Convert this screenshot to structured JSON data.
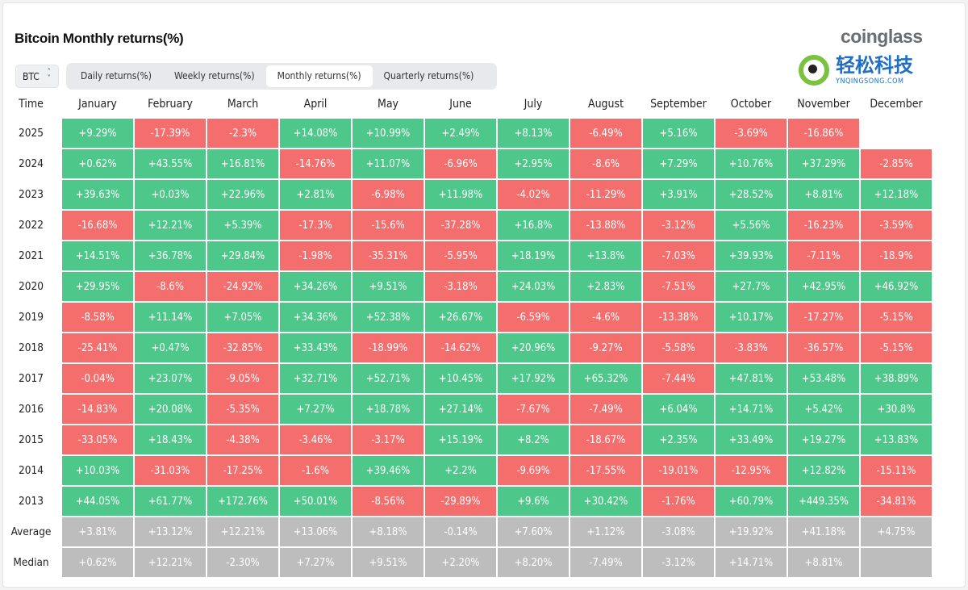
{
  "header": {
    "title": "Bitcoin Monthly returns(%)",
    "logo": "coinglass"
  },
  "controls": {
    "asset_select": "BTC",
    "tabs": [
      {
        "label": "Daily returns(%)",
        "active": false
      },
      {
        "label": "Weekly returns(%)",
        "active": false
      },
      {
        "label": "Monthly returns(%)",
        "active": true
      },
      {
        "label": "Quarterly returns(%)",
        "active": false
      }
    ]
  },
  "colors": {
    "positive": "#4dc78a",
    "negative": "#f46e6e",
    "stat": "#bdbdbd"
  },
  "table": {
    "columns": [
      "Time",
      "January",
      "February",
      "March",
      "April",
      "May",
      "June",
      "July",
      "August",
      "September",
      "October",
      "November",
      "December"
    ],
    "rows": [
      {
        "label": "2025",
        "values": [
          "+9.29%",
          "-17.39%",
          "-2.3%",
          "+14.08%",
          "+10.99%",
          "+2.49%",
          "+8.13%",
          "-6.49%",
          "+5.16%",
          "-3.69%",
          "-16.86%",
          ""
        ]
      },
      {
        "label": "2024",
        "values": [
          "+0.62%",
          "+43.55%",
          "+16.81%",
          "-14.76%",
          "+11.07%",
          "-6.96%",
          "+2.95%",
          "-8.6%",
          "+7.29%",
          "+10.76%",
          "+37.29%",
          "-2.85%"
        ]
      },
      {
        "label": "2023",
        "values": [
          "+39.63%",
          "+0.03%",
          "+22.96%",
          "+2.81%",
          "-6.98%",
          "+11.98%",
          "-4.02%",
          "-11.29%",
          "+3.91%",
          "+28.52%",
          "+8.81%",
          "+12.18%"
        ]
      },
      {
        "label": "2022",
        "values": [
          "-16.68%",
          "+12.21%",
          "+5.39%",
          "-17.3%",
          "-15.6%",
          "-37.28%",
          "+16.8%",
          "-13.88%",
          "-3.12%",
          "+5.56%",
          "-16.23%",
          "-3.59%"
        ]
      },
      {
        "label": "2021",
        "values": [
          "+14.51%",
          "+36.78%",
          "+29.84%",
          "-1.98%",
          "-35.31%",
          "-5.95%",
          "+18.19%",
          "+13.8%",
          "-7.03%",
          "+39.93%",
          "-7.11%",
          "-18.9%"
        ]
      },
      {
        "label": "2020",
        "values": [
          "+29.95%",
          "-8.6%",
          "-24.92%",
          "+34.26%",
          "+9.51%",
          "-3.18%",
          "+24.03%",
          "+2.83%",
          "-7.51%",
          "+27.7%",
          "+42.95%",
          "+46.92%"
        ]
      },
      {
        "label": "2019",
        "values": [
          "-8.58%",
          "+11.14%",
          "+7.05%",
          "+34.36%",
          "+52.38%",
          "+26.67%",
          "-6.59%",
          "-4.6%",
          "-13.38%",
          "+10.17%",
          "-17.27%",
          "-5.15%"
        ]
      },
      {
        "label": "2018",
        "values": [
          "-25.41%",
          "+0.47%",
          "-32.85%",
          "+33.43%",
          "-18.99%",
          "-14.62%",
          "+20.96%",
          "-9.27%",
          "-5.58%",
          "-3.83%",
          "-36.57%",
          "-5.15%"
        ]
      },
      {
        "label": "2017",
        "values": [
          "-0.04%",
          "+23.07%",
          "-9.05%",
          "+32.71%",
          "+52.71%",
          "+10.45%",
          "+17.92%",
          "+65.32%",
          "-7.44%",
          "+47.81%",
          "+53.48%",
          "+38.89%"
        ]
      },
      {
        "label": "2016",
        "values": [
          "-14.83%",
          "+20.08%",
          "-5.35%",
          "+7.27%",
          "+18.78%",
          "+27.14%",
          "-7.67%",
          "-7.49%",
          "+6.04%",
          "+14.71%",
          "+5.42%",
          "+30.8%"
        ]
      },
      {
        "label": "2015",
        "values": [
          "-33.05%",
          "+18.43%",
          "-4.38%",
          "-3.46%",
          "-3.17%",
          "+15.19%",
          "+8.2%",
          "-18.67%",
          "+2.35%",
          "+33.49%",
          "+19.27%",
          "+13.83%"
        ]
      },
      {
        "label": "2014",
        "values": [
          "+10.03%",
          "-31.03%",
          "-17.25%",
          "-1.6%",
          "+39.46%",
          "+2.2%",
          "-9.69%",
          "-17.55%",
          "-19.01%",
          "-12.95%",
          "+12.82%",
          "-15.11%"
        ]
      },
      {
        "label": "2013",
        "values": [
          "+44.05%",
          "+61.77%",
          "+172.76%",
          "+50.01%",
          "-8.56%",
          "-29.89%",
          "+9.6%",
          "+30.42%",
          "-1.76%",
          "+60.79%",
          "+449.35%",
          "-34.81%"
        ]
      }
    ],
    "stats": [
      {
        "label": "Average",
        "values": [
          "+3.81%",
          "+13.12%",
          "+12.21%",
          "+13.06%",
          "+8.18%",
          "-0.14%",
          "+7.60%",
          "+1.12%",
          "-3.08%",
          "+19.92%",
          "+41.18%",
          "+4.75%"
        ]
      },
      {
        "label": "Median",
        "values": [
          "+0.62%",
          "+12.21%",
          "-2.30%",
          "+7.27%",
          "+9.51%",
          "+2.20%",
          "+8.20%",
          "-7.49%",
          "-3.12%",
          "+14.71%",
          "+8.81%",
          ""
        ]
      }
    ]
  },
  "watermark": {
    "text": "轻松科技",
    "url": "YNQINGSONG.COM"
  }
}
